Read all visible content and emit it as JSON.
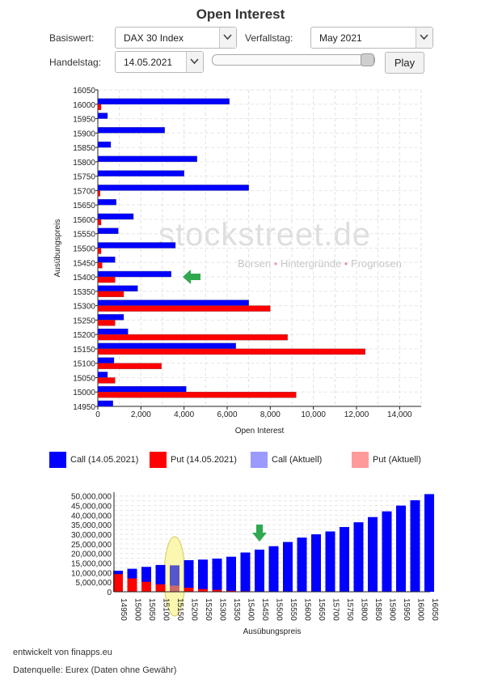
{
  "title": "Open Interest",
  "controls": {
    "basiswert_label": "Basiswert:",
    "basiswert_value": "DAX 30 Index",
    "verfallstag_label": "Verfallstag:",
    "verfallstag_value": "May 2021",
    "handelstag_label": "Handelstag:",
    "handelstag_value": "14.05.2021",
    "play_label": "Play",
    "slider_value": 1.0
  },
  "watermark": {
    "brand": "stockstreet.de",
    "tagline_1": "Börsen",
    "tagline_2": "Hintergründe",
    "tagline_3": "Prognosen"
  },
  "legend": [
    {
      "label": "Call (14.05.2021)",
      "color": "#0000ff"
    },
    {
      "label": "Put (14.05.2021)",
      "color": "#ff0000"
    },
    {
      "label": "Call (Aktuell)",
      "color": "#9a9aff"
    },
    {
      "label": "Put (Aktuell)",
      "color": "#ff9a9a"
    }
  ],
  "chart_data": [
    {
      "type": "bar",
      "orientation": "horizontal",
      "xlabel": "Open Interest",
      "ylabel": "Ausübungspreis",
      "xlim": [
        0,
        15000
      ],
      "x_ticks": [
        "0",
        "2,000",
        "4,000",
        "6,000",
        "8,000",
        "10,000",
        "12,000",
        "14,000"
      ],
      "grid": true,
      "categories": [
        "16050",
        "16000",
        "15950",
        "15900",
        "15850",
        "15800",
        "15750",
        "15700",
        "15650",
        "15600",
        "15550",
        "15500",
        "15450",
        "15400",
        "15350",
        "15300",
        "15250",
        "15200",
        "15150",
        "15100",
        "15050",
        "15000",
        "14950"
      ],
      "series": [
        {
          "name": "Call (14.05.2021)",
          "color": "#0000ff",
          "values": [
            0,
            6100,
            450,
            3100,
            600,
            4600,
            4000,
            7000,
            850,
            1650,
            950,
            3600,
            800,
            3400,
            1850,
            7000,
            1200,
            1400,
            6400,
            750,
            450,
            4100,
            700
          ]
        },
        {
          "name": "Put (14.05.2021)",
          "color": "#ff0000",
          "values": [
            0,
            150,
            0,
            0,
            0,
            0,
            0,
            100,
            0,
            150,
            0,
            150,
            200,
            800,
            1200,
            8000,
            800,
            8800,
            12400,
            2950,
            800,
            9200,
            0
          ]
        }
      ],
      "marker": {
        "category": "15400",
        "symbol": "arrow"
      }
    },
    {
      "type": "bar",
      "stacked": true,
      "xlabel": "Ausübungspreis",
      "ylabel": "",
      "ylim": [
        0,
        52000000
      ],
      "y_ticks": [
        "0",
        "5,000,000",
        "10,000,000",
        "15,000,000",
        "20,000,000",
        "25,000,000",
        "30,000,000",
        "35,000,000",
        "40,000,000",
        "45,000,000",
        "50,000,000"
      ],
      "categories": [
        "14950",
        "15000",
        "15050",
        "15100",
        "15150",
        "15200",
        "15250",
        "15300",
        "15350",
        "15400",
        "15450",
        "15500",
        "15550",
        "15600",
        "15650",
        "15700",
        "15750",
        "15800",
        "15850",
        "15900",
        "15950",
        "16000",
        "16050"
      ],
      "series": [
        {
          "name": "Call",
          "color": "#0000ff",
          "values": [
            11000000,
            12000000,
            13000000,
            14000000,
            13800000,
            16500000,
            16800000,
            17300000,
            18300000,
            20500000,
            22000000,
            23800000,
            26000000,
            28300000,
            30000000,
            31500000,
            33800000,
            36300000,
            39000000,
            42000000,
            45000000,
            47800000,
            51000000
          ]
        },
        {
          "name": "Put",
          "color": "#ff0000",
          "values": [
            9200000,
            7000000,
            5200000,
            3900000,
            3200000,
            2100000,
            1400000,
            1000000,
            500000,
            300000,
            200000,
            100000,
            100000,
            0,
            0,
            0,
            0,
            0,
            0,
            0,
            0,
            0,
            0
          ]
        }
      ],
      "highlight": {
        "category": "15150",
        "call_color": "#5555cc",
        "put_color": "#cc6b6b"
      },
      "marker": {
        "category": "15450",
        "symbol": "arrow"
      }
    }
  ],
  "footer": {
    "credit": "entwickelt von finapps.eu",
    "source": "Datenquelle: Eurex (Daten ohne Gewähr)"
  }
}
